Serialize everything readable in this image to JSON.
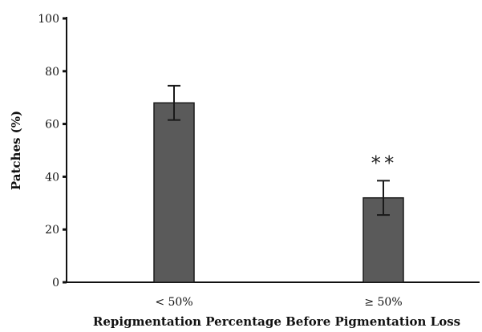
{
  "chart_data": {
    "type": "bar",
    "categories": [
      "< 50%",
      "≥ 50%"
    ],
    "values": [
      68,
      32
    ],
    "error": [
      6.5,
      6.5
    ],
    "annotations": [
      "",
      "**"
    ],
    "xlabel": "Repigmentation Percentage Before Pigmentation Loss",
    "ylabel": "Patches (%)",
    "ylim": [
      0,
      100
    ],
    "yticks": [
      0,
      20,
      40,
      60,
      80,
      100
    ],
    "grid": false,
    "colors": {
      "bar": "#5a5a5a",
      "bar_edge": "#1a1a1a",
      "axis": "#111111"
    }
  }
}
